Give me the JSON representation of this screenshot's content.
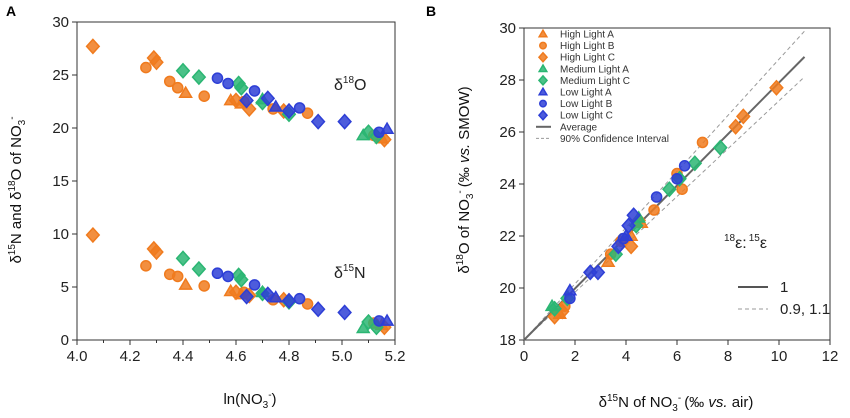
{
  "chart_data": [
    {
      "panel": "A",
      "type": "scatter",
      "xlabel_main": "ln(NO",
      "xlabel_sub": "3",
      "xlabel_sup": "-",
      "xlabel_tail": ")",
      "ylabel_parts": {
        "delta1": "δ",
        "sup1": "15",
        "mid": "N and ",
        "delta2": "δ",
        "sup2": "18",
        "mid2": "O of NO",
        "sub": "3",
        "sup3": "-"
      },
      "xlim": [
        4.0,
        5.2
      ],
      "ylim": [
        0,
        30
      ],
      "xticks": [
        "4.0",
        "4.2",
        "4.4",
        "4.6",
        "4.8",
        "5.0",
        "5.2"
      ],
      "yticks": [
        "0",
        "5",
        "10",
        "15",
        "20",
        "25",
        "30"
      ],
      "annotations": {
        "o18_delta": "δ",
        "o18_sup": "18",
        "o18_el": "O",
        "n15_delta": "δ",
        "n15_sup": "15",
        "n15_el": "N"
      },
      "series": [
        {
          "name": "High Light A",
          "marker": "triangle",
          "color": "#f07b1e",
          "points": [
            [
              4.41,
              23.3
            ],
            [
              4.58,
              22.6
            ],
            [
              4.62,
              22.3
            ],
            [
              5.15,
              19.0
            ],
            [
              4.41,
              5.2
            ],
            [
              4.58,
              4.6
            ],
            [
              4.62,
              4.3
            ],
            [
              5.15,
              1.4
            ]
          ]
        },
        {
          "name": "High Light B",
          "marker": "circle",
          "color": "#f07b1e",
          "points": [
            [
              4.26,
              25.7
            ],
            [
              4.35,
              24.4
            ],
            [
              4.38,
              23.8
            ],
            [
              4.48,
              23.0
            ],
            [
              4.63,
              22.5
            ],
            [
              4.74,
              21.8
            ],
            [
              4.87,
              21.4
            ],
            [
              5.12,
              19.3
            ],
            [
              4.26,
              7.0
            ],
            [
              4.35,
              6.2
            ],
            [
              4.38,
              6.0
            ],
            [
              4.48,
              5.1
            ],
            [
              4.63,
              4.5
            ],
            [
              4.74,
              3.8
            ],
            [
              4.87,
              3.4
            ],
            [
              5.12,
              1.6
            ]
          ]
        },
        {
          "name": "High Light C",
          "marker": "diamond",
          "color": "#f07b1e",
          "points": [
            [
              4.06,
              27.7
            ],
            [
              4.29,
              26.6
            ],
            [
              4.3,
              26.2
            ],
            [
              4.6,
              22.6
            ],
            [
              4.65,
              21.8
            ],
            [
              4.78,
              21.6
            ],
            [
              5.16,
              18.9
            ],
            [
              4.06,
              9.9
            ],
            [
              4.29,
              8.6
            ],
            [
              4.3,
              8.3
            ],
            [
              4.6,
              4.5
            ],
            [
              4.65,
              4.2
            ],
            [
              4.78,
              3.8
            ],
            [
              5.16,
              1.2
            ]
          ]
        },
        {
          "name": "Medium Light A",
          "marker": "triangle",
          "color": "#2bb673",
          "points": [
            [
              4.7,
              22.7
            ],
            [
              5.08,
              19.3
            ],
            [
              4.7,
              4.5
            ],
            [
              5.08,
              1.1
            ]
          ]
        },
        {
          "name": "Medium Light C",
          "marker": "diamond",
          "color": "#2bb673",
          "points": [
            [
              4.4,
              25.4
            ],
            [
              4.46,
              24.8
            ],
            [
              4.61,
              24.2
            ],
            [
              4.62,
              23.8
            ],
            [
              4.7,
              22.4
            ],
            [
              4.8,
              21.3
            ],
            [
              5.1,
              19.6
            ],
            [
              5.13,
              19.2
            ],
            [
              4.4,
              7.7
            ],
            [
              4.46,
              6.7
            ],
            [
              4.61,
              6.1
            ],
            [
              4.62,
              5.7
            ],
            [
              4.7,
              4.4
            ],
            [
              4.8,
              3.6
            ],
            [
              5.1,
              1.7
            ],
            [
              5.13,
              1.2
            ]
          ]
        },
        {
          "name": "Low Light A",
          "marker": "triangle",
          "color": "#2e3fd6",
          "points": [
            [
              4.75,
              22.0
            ],
            [
              5.17,
              19.9
            ],
            [
              4.75,
              4.0
            ],
            [
              5.17,
              1.8
            ]
          ]
        },
        {
          "name": "Low Light B",
          "marker": "circle",
          "color": "#2e3fd6",
          "points": [
            [
              4.53,
              24.7
            ],
            [
              4.57,
              24.2
            ],
            [
              4.67,
              23.5
            ],
            [
              4.84,
              21.9
            ],
            [
              5.14,
              19.6
            ],
            [
              4.53,
              6.3
            ],
            [
              4.57,
              6.0
            ],
            [
              4.67,
              5.2
            ],
            [
              4.84,
              3.9
            ],
            [
              5.14,
              1.8
            ]
          ]
        },
        {
          "name": "Low Light C",
          "marker": "diamond",
          "color": "#2e3fd6",
          "points": [
            [
              4.64,
              22.6
            ],
            [
              4.72,
              22.8
            ],
            [
              4.8,
              21.6
            ],
            [
              4.91,
              20.6
            ],
            [
              5.01,
              20.6
            ],
            [
              4.64,
              4.1
            ],
            [
              4.72,
              4.3
            ],
            [
              4.8,
              3.7
            ],
            [
              4.91,
              2.9
            ],
            [
              5.01,
              2.6
            ]
          ]
        }
      ]
    },
    {
      "panel": "B",
      "type": "scatter",
      "xlabel_parts": {
        "delta": "δ",
        "sup": "15",
        "mid": "N of NO",
        "sub": "3",
        "sup2": "-",
        "paren": "(‰ ",
        "vs": "vs.",
        "tail": " air)"
      },
      "ylabel_parts": {
        "delta": "δ",
        "sup": "18",
        "mid": "O of NO",
        "sub": "3",
        "sup2": "-",
        "paren": "(‰ ",
        "vs": "vs.",
        "tail": " SMOW)"
      },
      "xlim": [
        0,
        12
      ],
      "ylim": [
        18,
        30
      ],
      "xticks": [
        "0",
        "2",
        "4",
        "6",
        "8",
        "10",
        "12"
      ],
      "yticks": [
        "18",
        "20",
        "22",
        "24",
        "26",
        "28",
        "30"
      ],
      "legend": [
        {
          "label": "High Light A",
          "marker": "triangle",
          "color": "#f07b1e"
        },
        {
          "label": "High Light B",
          "marker": "circle",
          "color": "#f07b1e"
        },
        {
          "label": "High Light C",
          "marker": "diamond",
          "color": "#f07b1e"
        },
        {
          "label": "Medium Light A",
          "marker": "triangle",
          "color": "#2bb673"
        },
        {
          "label": "Medium Light C",
          "marker": "diamond",
          "color": "#2bb673"
        },
        {
          "label": "Low Light A",
          "marker": "triangle",
          "color": "#2e3fd6"
        },
        {
          "label": "Low Light B",
          "marker": "circle",
          "color": "#2e3fd6"
        },
        {
          "label": "Low Light C",
          "marker": "diamond",
          "color": "#2e3fd6"
        },
        {
          "label": "Average",
          "marker": "line",
          "color": "#666666"
        },
        {
          "label": "90% Confidence Interval",
          "marker": "dash",
          "color": "#999999"
        }
      ],
      "average_line": {
        "slope": 0.99,
        "intercept": 18.0
      },
      "confidence_lines": [
        {
          "slope": 0.92,
          "intercept": 18.0
        },
        {
          "slope": 1.08,
          "intercept": 18.0
        }
      ],
      "ratio_title": {
        "sup1": "18",
        "eps1": "ε",
        "colon": ":",
        "sup2": "15",
        "eps2": "ε"
      },
      "ratio_legend": [
        {
          "label": "1",
          "style": "solid",
          "slope": 1.0
        },
        {
          "label": "0.9, 1.1",
          "style": "dash",
          "slopes": [
            0.9,
            1.1
          ]
        }
      ],
      "series": [
        {
          "name": "High Light A",
          "marker": "triangle",
          "color": "#f07b1e",
          "points": [
            [
              1.4,
              19.0
            ],
            [
              3.3,
              21.0
            ],
            [
              4.2,
              22.0
            ],
            [
              4.6,
              22.5
            ]
          ]
        },
        {
          "name": "High Light B",
          "marker": "circle",
          "color": "#f07b1e",
          "points": [
            [
              1.6,
              19.3
            ],
            [
              3.4,
              21.3
            ],
            [
              3.8,
              21.8
            ],
            [
              5.1,
              23.0
            ],
            [
              6.0,
              24.4
            ],
            [
              6.2,
              23.8
            ],
            [
              7.0,
              25.6
            ]
          ]
        },
        {
          "name": "High Light C",
          "marker": "diamond",
          "color": "#f07b1e",
          "points": [
            [
              1.2,
              18.9
            ],
            [
              1.5,
              19.1
            ],
            [
              4.2,
              21.6
            ],
            [
              4.5,
              22.6
            ],
            [
              8.3,
              26.2
            ],
            [
              8.6,
              26.6
            ],
            [
              9.9,
              27.7
            ]
          ]
        },
        {
          "name": "Medium Light A",
          "marker": "triangle",
          "color": "#2bb673",
          "points": [
            [
              1.1,
              19.3
            ],
            [
              4.5,
              22.7
            ]
          ]
        },
        {
          "name": "Medium Light C",
          "marker": "diamond",
          "color": "#2bb673",
          "points": [
            [
              1.2,
              19.2
            ],
            [
              1.7,
              19.6
            ],
            [
              3.6,
              21.3
            ],
            [
              4.4,
              22.4
            ],
            [
              5.7,
              23.8
            ],
            [
              6.1,
              24.2
            ],
            [
              6.7,
              24.8
            ],
            [
              7.7,
              25.4
            ]
          ]
        },
        {
          "name": "Low Light A",
          "marker": "triangle",
          "color": "#2e3fd6",
          "points": [
            [
              1.8,
              19.9
            ],
            [
              4.0,
              22.0
            ]
          ]
        },
        {
          "name": "Low Light B",
          "marker": "circle",
          "color": "#2e3fd6",
          "points": [
            [
              1.8,
              19.6
            ],
            [
              3.9,
              21.9
            ],
            [
              5.2,
              23.5
            ],
            [
              6.0,
              24.2
            ],
            [
              6.3,
              24.7
            ]
          ]
        },
        {
          "name": "Low Light C",
          "marker": "diamond",
          "color": "#2e3fd6",
          "points": [
            [
              2.6,
              20.6
            ],
            [
              2.9,
              20.6
            ],
            [
              3.7,
              21.6
            ],
            [
              4.1,
              22.4
            ],
            [
              4.3,
              22.8
            ]
          ]
        }
      ]
    }
  ]
}
